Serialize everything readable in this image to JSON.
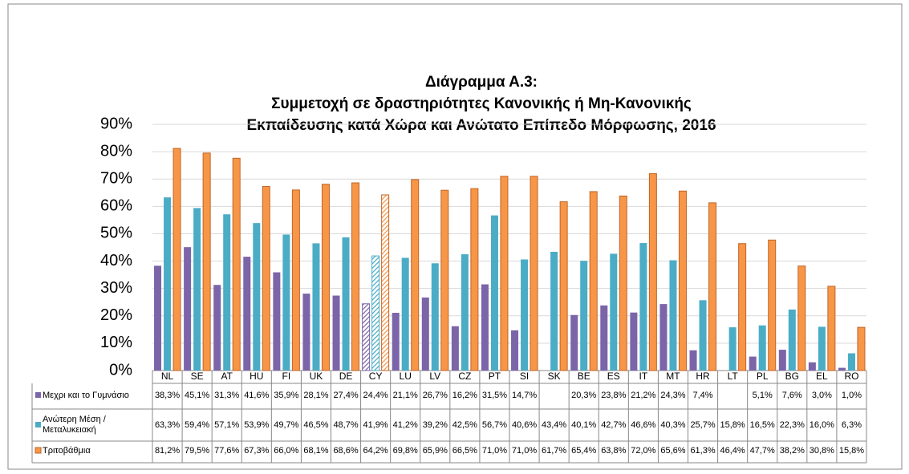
{
  "chart_data": {
    "type": "bar",
    "title": [
      "Διάγραμμα Α.3:",
      "Συμμετοχή σε δραστηριότητες Κανονικής ή Μη-Κανονικής",
      "Εκπαίδευσης κατά Χώρα και Ανώτατο Επίπεδο Μόρφωσης, 2016"
    ],
    "categories": [
      "NL",
      "SE",
      "AT",
      "HU",
      "FI",
      "UK",
      "DE",
      "CY",
      "LU",
      "LV",
      "CZ",
      "PT",
      "SI",
      "SK",
      "BE",
      "ES",
      "IT",
      "MT",
      "HR",
      "LT",
      "PL",
      "BG",
      "EL",
      "RO"
    ],
    "highlight_index": 7,
    "ylim": [
      0,
      90
    ],
    "yticks": [
      {
        "value": 0,
        "label": "0%"
      },
      {
        "value": 10,
        "label": "10%"
      },
      {
        "value": 20,
        "label": "20%"
      },
      {
        "value": 30,
        "label": "30%"
      },
      {
        "value": 40,
        "label": "40%"
      },
      {
        "value": 50,
        "label": "50%"
      },
      {
        "value": 60,
        "label": "60%"
      },
      {
        "value": 70,
        "label": "70%"
      },
      {
        "value": 80,
        "label": "80%"
      },
      {
        "value": 90,
        "label": "90%"
      }
    ],
    "grid": true,
    "series": [
      {
        "name": "Μεχρι και το Γυμνάσιο",
        "color": "#7b64a8",
        "values": [
          38.3,
          45.1,
          31.3,
          41.6,
          35.9,
          28.1,
          27.4,
          24.4,
          21.1,
          26.7,
          16.2,
          31.5,
          14.7,
          null,
          20.3,
          23.8,
          21.2,
          24.3,
          7.4,
          null,
          5.1,
          7.6,
          3.0,
          1.0
        ],
        "value_labels": [
          "38,3%",
          "45,1%",
          "31,3%",
          "41,6%",
          "35,9%",
          "28,1%",
          "27,4%",
          "24,4%",
          "21,1%",
          "26,7%",
          "16,2%",
          "31,5%",
          "14,7%",
          null,
          "20,3%",
          "23,8%",
          "21,2%",
          "24,3%",
          "7,4%",
          null,
          "5,1%",
          "7,6%",
          "3,0%",
          "1,0%"
        ]
      },
      {
        "name": "Ανώτερη Μέση / Μεταλυκειακή",
        "color": "#4bacc6",
        "values": [
          63.3,
          59.4,
          57.1,
          53.9,
          49.7,
          46.5,
          48.7,
          41.9,
          41.2,
          39.2,
          42.5,
          56.7,
          40.6,
          43.4,
          40.1,
          42.7,
          46.6,
          40.3,
          25.7,
          15.8,
          16.5,
          22.3,
          16.0,
          6.3
        ],
        "value_labels": [
          "63,3%",
          "59,4%",
          "57,1%",
          "53,9%",
          "49,7%",
          "46,5%",
          "48,7%",
          "41,9%",
          "41,2%",
          "39,2%",
          "42,5%",
          "56,7%",
          "40,6%",
          "43,4%",
          "40,1%",
          "42,7%",
          "46,6%",
          "40,3%",
          "25,7%",
          "15,8%",
          "16,5%",
          "22,3%",
          "16,0%",
          "6,3%"
        ]
      },
      {
        "name": "Τριτοβάθμια",
        "color": "#f79646",
        "values": [
          81.2,
          79.5,
          77.6,
          67.3,
          66.0,
          68.1,
          68.6,
          64.2,
          69.8,
          65.9,
          66.5,
          71.0,
          71.0,
          61.7,
          65.4,
          63.8,
          72.0,
          65.6,
          61.3,
          46.4,
          47.7,
          38.2,
          30.8,
          15.8
        ],
        "value_labels": [
          "81,2%",
          "79,5%",
          "77,6%",
          "67,3%",
          "66,0%",
          "68,1%",
          "68,6%",
          "64,2%",
          "69,8%",
          "65,9%",
          "66,5%",
          "71,0%",
          "71,0%",
          "61,7%",
          "65,4%",
          "63,8%",
          "72,0%",
          "65,6%",
          "61,3%",
          "46,4%",
          "47,7%",
          "38,2%",
          "30,8%",
          "15,8%"
        ]
      }
    ]
  }
}
